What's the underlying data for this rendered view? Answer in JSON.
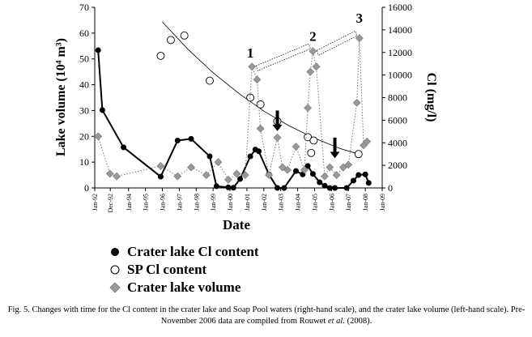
{
  "chart_data": {
    "type": "scatter",
    "xlabel": "Date",
    "ylabel_left": "Lake volume (10⁴ m³)",
    "ylabel_right": "Cl (mg/l)",
    "ylim_left": [
      0,
      70
    ],
    "ylim_right": [
      0,
      16000
    ],
    "yticks_left": [
      0,
      10,
      20,
      30,
      40,
      50,
      60,
      70
    ],
    "yticks_right": [
      0,
      2000,
      4000,
      6000,
      8000,
      10000,
      12000,
      14000,
      16000
    ],
    "xlim": [
      1992.0,
      2009.0
    ],
    "xticks": [
      {
        "x": 1992.0,
        "label": "Jan-92"
      },
      {
        "x": 1992.92,
        "label": "Dec-92"
      },
      {
        "x": 1994.0,
        "label": "Jan-94"
      },
      {
        "x": 1995.0,
        "label": "Jan-95"
      },
      {
        "x": 1996.0,
        "label": "Jan-96"
      },
      {
        "x": 1997.0,
        "label": "Jan-97"
      },
      {
        "x": 1998.0,
        "label": "Jan-98"
      },
      {
        "x": 1999.0,
        "label": "Jan-99"
      },
      {
        "x": 2000.0,
        "label": "Jan-00"
      },
      {
        "x": 2001.0,
        "label": "Jan-01"
      },
      {
        "x": 2002.0,
        "label": "Jan-02"
      },
      {
        "x": 2003.0,
        "label": "Jan-03"
      },
      {
        "x": 2004.0,
        "label": "Jan-04"
      },
      {
        "x": 2005.0,
        "label": "Jan-05"
      },
      {
        "x": 2006.0,
        "label": "Jan-06"
      },
      {
        "x": 2007.0,
        "label": "Jan-07"
      },
      {
        "x": 2008.0,
        "label": "Jan-08"
      },
      {
        "x": 2009.0,
        "label": "Jan-09"
      }
    ],
    "series": [
      {
        "name": "Crater lake Cl content",
        "axis": "right",
        "marker": "filled-circle",
        "line": "solid",
        "color": "#000000",
        "points": [
          [
            1992.2,
            12200
          ],
          [
            1992.45,
            6900
          ],
          [
            1993.7,
            3600
          ],
          [
            1995.9,
            1000
          ],
          [
            1996.9,
            4200
          ],
          [
            1997.7,
            4350
          ],
          [
            1998.8,
            2800
          ],
          [
            1999.2,
            150
          ],
          [
            1999.9,
            50
          ],
          [
            2000.2,
            20
          ],
          [
            2000.6,
            800
          ],
          [
            2001.2,
            2800
          ],
          [
            2001.5,
            3400
          ],
          [
            2001.7,
            3250
          ],
          [
            2002.3,
            1200
          ],
          [
            2002.8,
            0
          ],
          [
            2003.2,
            0
          ],
          [
            2003.9,
            1500
          ],
          [
            2004.3,
            1200
          ],
          [
            2004.6,
            1950
          ],
          [
            2004.9,
            1250
          ],
          [
            2005.3,
            500
          ],
          [
            2005.6,
            200
          ],
          [
            2005.9,
            0
          ],
          [
            2006.2,
            0
          ],
          [
            2006.9,
            0
          ],
          [
            2007.3,
            650
          ],
          [
            2007.6,
            1150
          ],
          [
            2008.0,
            1200
          ],
          [
            2008.2,
            450
          ]
        ]
      },
      {
        "name": "SP Cl content",
        "axis": "right",
        "marker": "open-circle",
        "line": "none",
        "color": "#000000",
        "points": [
          [
            1995.9,
            11700
          ],
          [
            1996.5,
            13100
          ],
          [
            1997.3,
            13500
          ],
          [
            1998.8,
            9500
          ],
          [
            2001.2,
            8000
          ],
          [
            2001.8,
            7400
          ],
          [
            2002.8,
            5900
          ],
          [
            2004.6,
            4500
          ],
          [
            2004.8,
            3100
          ],
          [
            2004.95,
            4200
          ],
          [
            2007.6,
            3000
          ]
        ]
      },
      {
        "name": "Crater lake volume",
        "axis": "left",
        "marker": "diamond",
        "line": "dotted",
        "color": "#999999",
        "points": [
          [
            1992.2,
            20
          ],
          [
            1992.9,
            5.5
          ],
          [
            1993.3,
            4.5
          ],
          [
            1995.9,
            8.5
          ],
          [
            1996.9,
            4.5
          ],
          [
            1997.7,
            8
          ],
          [
            1998.6,
            5
          ],
          [
            1999.3,
            10
          ],
          [
            1999.9,
            3.2
          ],
          [
            2000.4,
            5.5
          ],
          [
            2000.9,
            5
          ],
          [
            2001.3,
            47
          ],
          [
            2001.6,
            42
          ],
          [
            2001.8,
            23
          ],
          [
            2002.3,
            5
          ],
          [
            2002.8,
            19.5
          ],
          [
            2003.1,
            8
          ],
          [
            2003.4,
            7
          ],
          [
            2003.9,
            16
          ],
          [
            2004.4,
            7
          ],
          [
            2004.6,
            31
          ],
          [
            2004.75,
            45
          ],
          [
            2004.9,
            53
          ],
          [
            2005.1,
            47
          ],
          [
            2005.6,
            4.5
          ],
          [
            2005.9,
            8
          ],
          [
            2006.3,
            5
          ],
          [
            2006.7,
            8
          ],
          [
            2007.0,
            9
          ],
          [
            2007.5,
            33
          ],
          [
            2007.65,
            58
          ],
          [
            2007.9,
            16.5
          ],
          [
            2008.1,
            18
          ]
        ]
      }
    ],
    "trendline": {
      "axis": "right",
      "style": "solid",
      "color": "#000000",
      "points": [
        [
          1996.0,
          14700
        ],
        [
          1997.5,
          12300
        ],
        [
          1999.0,
          10200
        ],
        [
          2000.5,
          8400
        ],
        [
          2002.0,
          6800
        ],
        [
          2003.5,
          5500
        ],
        [
          2005.0,
          4400
        ],
        [
          2006.5,
          3500
        ],
        [
          2007.6,
          3000
        ]
      ]
    },
    "annotations": [
      {
        "type": "label",
        "text": "1",
        "x": 2001.2,
        "y": 50.5
      },
      {
        "type": "label",
        "text": "2",
        "x": 2004.9,
        "y": 57
      },
      {
        "type": "label",
        "text": "3",
        "x": 2007.65,
        "y": 64
      },
      {
        "type": "arrow",
        "x": 2002.8,
        "y_from": 30,
        "y_to": 22
      },
      {
        "type": "arrow",
        "x": 2006.2,
        "y_from": 19.5,
        "y_to": 11.5
      }
    ],
    "highlight_bands": [
      {
        "from": [
          2001.3,
          47
        ],
        "to": [
          2004.9,
          53
        ]
      },
      {
        "from": [
          2004.9,
          53
        ],
        "to": [
          2007.65,
          58
        ]
      }
    ],
    "legend_placement": "below"
  },
  "legend": [
    {
      "marker": "filled-circle",
      "label": "Crater lake Cl content"
    },
    {
      "marker": "open-circle",
      "label": "SP Cl content"
    },
    {
      "marker": "diamond",
      "label": "Crater lake volume"
    }
  ],
  "caption": {
    "prefix": "Fig. 5. Changes with time for the Cl content in the crater lake and Soap Pool waters (right-hand scale), and the crater lake volume (left-hand scale). Pre-November 2006 data are compiled from Rouwet ",
    "et_al": "et al.",
    "suffix": " (2008)."
  }
}
